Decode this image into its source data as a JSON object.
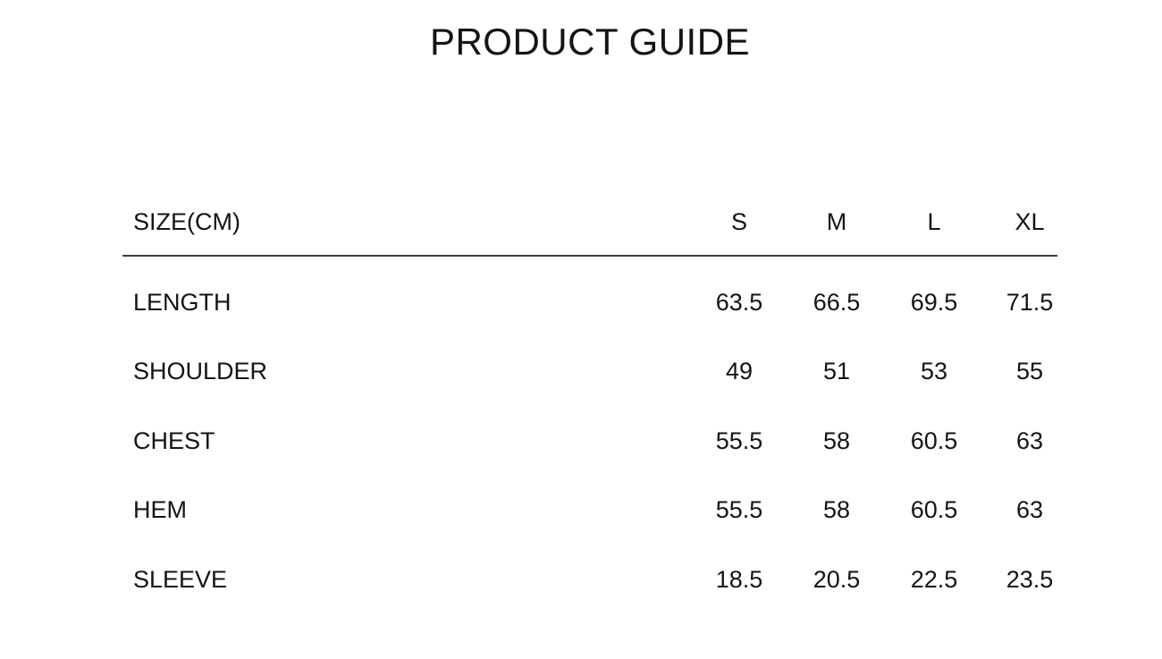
{
  "page": {
    "title": "PRODUCT GUIDE"
  },
  "size_table": {
    "header": {
      "label": "SIZE(CM)",
      "sizes": [
        "S",
        "M",
        "L",
        "XL"
      ]
    },
    "rows": [
      {
        "label": "LENGTH",
        "values": [
          "63.5",
          "66.5",
          "69.5",
          "71.5"
        ]
      },
      {
        "label": "SHOULDER",
        "values": [
          "49",
          "51",
          "53",
          "55"
        ]
      },
      {
        "label": "CHEST",
        "values": [
          "55.5",
          "58",
          "60.5",
          "63"
        ]
      },
      {
        "label": "HEM",
        "values": [
          "55.5",
          "58",
          "60.5",
          "63"
        ]
      },
      {
        "label": "SLEEVE",
        "values": [
          "18.5",
          "20.5",
          "22.5",
          "23.5"
        ]
      }
    ]
  },
  "colors": {
    "background": "#ffffff",
    "text": "#141414",
    "divider": "#3d3d3d"
  }
}
